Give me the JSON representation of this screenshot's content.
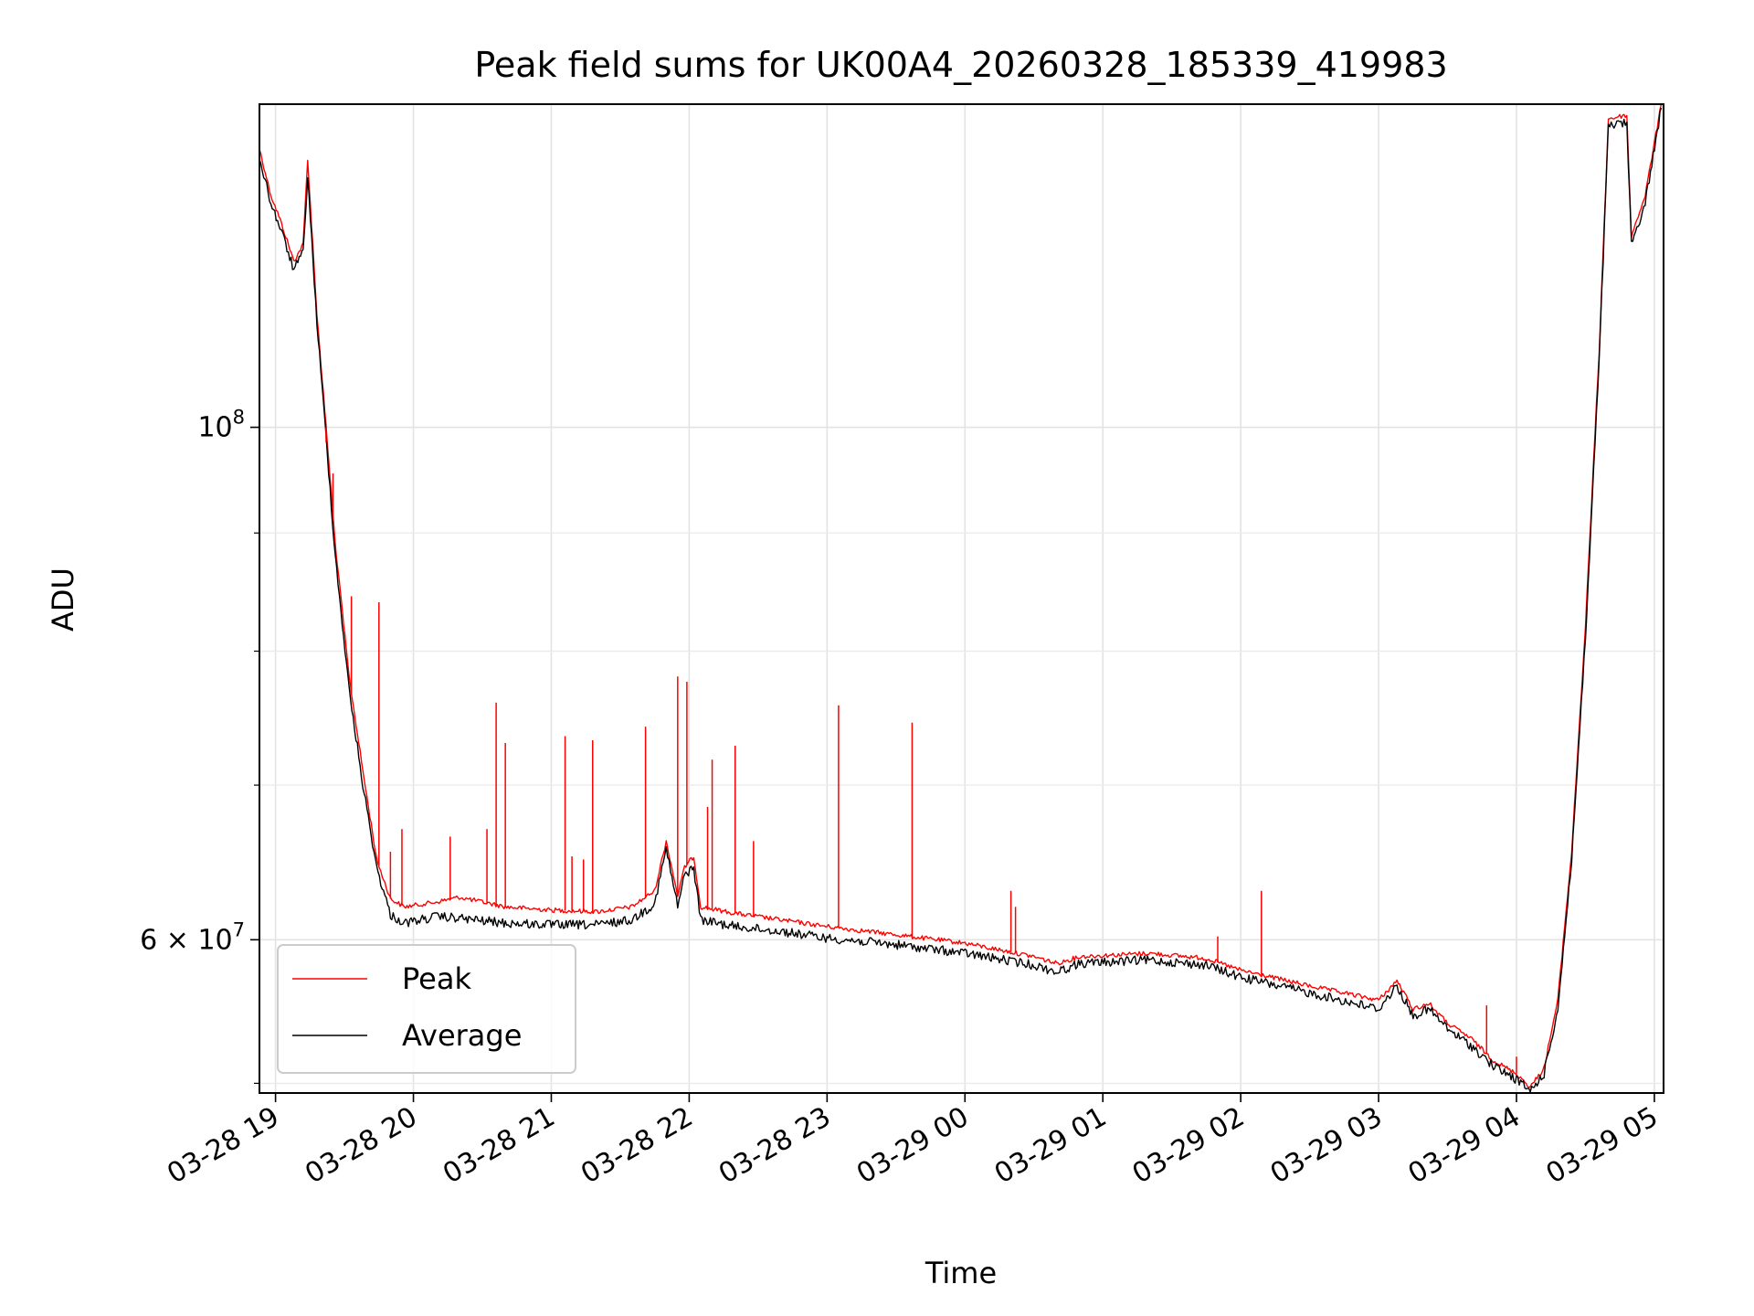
{
  "chart_data": {
    "type": "line",
    "title": "Peak field sums for UK00A4_20260328_185339_419983",
    "xlabel": "Time",
    "ylabel": "ADU",
    "yscale": "log",
    "grid": true,
    "legend_position": "lower-left",
    "xlim": [
      "2026-03-28 18:53",
      "2026-03-29 05:04"
    ],
    "ylim": [
      51500000,
      138000000
    ],
    "x_ticks": [
      "03-28 19",
      "03-28 20",
      "03-28 21",
      "03-28 22",
      "03-28 23",
      "03-29 00",
      "03-29 01",
      "03-29 02",
      "03-29 03",
      "03-29 04",
      "03-29 05"
    ],
    "y_ticks": [
      {
        "value": 100000000,
        "base": "10",
        "exp": "8",
        "mult": ""
      },
      {
        "value": 60000000,
        "base": "10",
        "exp": "7",
        "mult": "6 × "
      }
    ],
    "y_minor_ticks": [
      52000000,
      70000000,
      80000000,
      90000000
    ],
    "x_grid": [
      "2026-03-28 19:00",
      "2026-03-28 20:00",
      "2026-03-28 21:00",
      "2026-03-28 22:00",
      "2026-03-28 23:00",
      "2026-03-29 00:00",
      "2026-03-29 01:00",
      "2026-03-29 02:00",
      "2026-03-29 03:00",
      "2026-03-29 04:00",
      "2026-03-29 05:00"
    ],
    "series": [
      {
        "name": "Peak",
        "color": "#ff0000",
        "points": [
          [
            "2026-03-28 18:53",
            132000000
          ],
          [
            "2026-03-28 18:58",
            126000000
          ],
          [
            "2026-03-28 19:02",
            123000000
          ],
          [
            "2026-03-28 19:08",
            118000000
          ],
          [
            "2026-03-28 19:12",
            120000000
          ],
          [
            "2026-03-28 19:14",
            130500000
          ],
          [
            "2026-03-28 19:18",
            112000000
          ],
          [
            "2026-03-28 19:22",
            100000000
          ],
          [
            "2026-03-28 19:26",
            89000000
          ],
          [
            "2026-03-28 19:32",
            78000000
          ],
          [
            "2026-03-28 19:38",
            71000000
          ],
          [
            "2026-03-28 19:44",
            65000000
          ],
          [
            "2026-03-28 19:50",
            62500000
          ],
          [
            "2026-03-28 19:56",
            62000000
          ],
          [
            "2026-03-28 20:10",
            62300000
          ],
          [
            "2026-03-28 20:20",
            62600000
          ],
          [
            "2026-03-28 20:40",
            62000000
          ],
          [
            "2026-03-28 21:00",
            61800000
          ],
          [
            "2026-03-28 21:20",
            61700000
          ],
          [
            "2026-03-28 21:35",
            62000000
          ],
          [
            "2026-03-28 21:45",
            63000000
          ],
          [
            "2026-03-28 21:50",
            66200000
          ],
          [
            "2026-03-28 21:55",
            62700000
          ],
          [
            "2026-03-28 21:58",
            64500000
          ],
          [
            "2026-03-28 22:02",
            65200000
          ],
          [
            "2026-03-28 22:05",
            62000000
          ],
          [
            "2026-03-28 22:20",
            61600000
          ],
          [
            "2026-03-28 22:40",
            61200000
          ],
          [
            "2026-03-28 23:00",
            60800000
          ],
          [
            "2026-03-28 23:30",
            60300000
          ],
          [
            "2026-03-29 00:00",
            59800000
          ],
          [
            "2026-03-29 00:30",
            59000000
          ],
          [
            "2026-03-29 00:40",
            58600000
          ],
          [
            "2026-03-29 00:50",
            59000000
          ],
          [
            "2026-03-29 01:20",
            59200000
          ],
          [
            "2026-03-29 01:45",
            58900000
          ],
          [
            "2026-03-29 02:00",
            58200000
          ],
          [
            "2026-03-29 02:30",
            57300000
          ],
          [
            "2026-03-29 03:00",
            56500000
          ],
          [
            "2026-03-29 03:08",
            57600000
          ],
          [
            "2026-03-29 03:15",
            56000000
          ],
          [
            "2026-03-29 03:22",
            56300000
          ],
          [
            "2026-03-29 03:30",
            55200000
          ],
          [
            "2026-03-29 03:40",
            54400000
          ],
          [
            "2026-03-29 03:50",
            53200000
          ],
          [
            "2026-03-29 04:00",
            52500000
          ],
          [
            "2026-03-29 04:06",
            51800000
          ],
          [
            "2026-03-29 04:12",
            52800000
          ],
          [
            "2026-03-29 04:18",
            56500000
          ],
          [
            "2026-03-29 04:24",
            65500000
          ],
          [
            "2026-03-29 04:30",
            82000000
          ],
          [
            "2026-03-29 04:36",
            108000000
          ],
          [
            "2026-03-29 04:40",
            136000000
          ],
          [
            "2026-03-29 04:48",
            136500000
          ],
          [
            "2026-03-29 04:50",
            121000000
          ],
          [
            "2026-03-29 04:56",
            126000000
          ],
          [
            "2026-03-29 05:03",
            138000000
          ]
        ]
      },
      {
        "name": "Average",
        "color": "#000000",
        "points": [
          [
            "2026-03-28 18:53",
            131000000
          ],
          [
            "2026-03-28 18:58",
            125000000
          ],
          [
            "2026-03-28 19:02",
            122000000
          ],
          [
            "2026-03-28 19:08",
            117000000
          ],
          [
            "2026-03-28 19:12",
            119000000
          ],
          [
            "2026-03-28 19:14",
            128500000
          ],
          [
            "2026-03-28 19:18",
            111000000
          ],
          [
            "2026-03-28 19:22",
            99000000
          ],
          [
            "2026-03-28 19:26",
            88000000
          ],
          [
            "2026-03-28 19:32",
            77000000
          ],
          [
            "2026-03-28 19:38",
            70000000
          ],
          [
            "2026-03-28 19:44",
            64500000
          ],
          [
            "2026-03-28 19:50",
            61500000
          ],
          [
            "2026-03-28 19:56",
            61000000
          ],
          [
            "2026-03-28 20:10",
            61400000
          ],
          [
            "2026-03-28 20:20",
            61300000
          ],
          [
            "2026-03-28 20:40",
            61000000
          ],
          [
            "2026-03-28 21:00",
            60900000
          ],
          [
            "2026-03-28 21:20",
            60900000
          ],
          [
            "2026-03-28 21:35",
            61200000
          ],
          [
            "2026-03-28 21:45",
            62200000
          ],
          [
            "2026-03-28 21:50",
            65700000
          ],
          [
            "2026-03-28 21:55",
            62000000
          ],
          [
            "2026-03-28 21:58",
            64000000
          ],
          [
            "2026-03-28 22:02",
            64500000
          ],
          [
            "2026-03-28 22:05",
            61200000
          ],
          [
            "2026-03-28 22:20",
            60800000
          ],
          [
            "2026-03-28 22:40",
            60500000
          ],
          [
            "2026-03-28 23:00",
            60100000
          ],
          [
            "2026-03-28 23:30",
            59700000
          ],
          [
            "2026-03-29 00:00",
            59200000
          ],
          [
            "2026-03-29 00:30",
            58500000
          ],
          [
            "2026-03-29 00:40",
            58100000
          ],
          [
            "2026-03-29 00:50",
            58600000
          ],
          [
            "2026-03-29 01:20",
            58800000
          ],
          [
            "2026-03-29 01:45",
            58500000
          ],
          [
            "2026-03-29 02:00",
            57800000
          ],
          [
            "2026-03-29 02:30",
            56900000
          ],
          [
            "2026-03-29 03:00",
            56000000
          ],
          [
            "2026-03-29 03:08",
            57300000
          ],
          [
            "2026-03-29 03:15",
            55600000
          ],
          [
            "2026-03-29 03:22",
            56000000
          ],
          [
            "2026-03-29 03:30",
            54900000
          ],
          [
            "2026-03-29 03:40",
            54000000
          ],
          [
            "2026-03-29 03:50",
            52900000
          ],
          [
            "2026-03-29 04:00",
            52200000
          ],
          [
            "2026-03-29 04:06",
            51600000
          ],
          [
            "2026-03-29 04:12",
            52500000
          ],
          [
            "2026-03-29 04:18",
            56000000
          ],
          [
            "2026-03-29 04:24",
            65000000
          ],
          [
            "2026-03-29 04:30",
            81000000
          ],
          [
            "2026-03-29 04:36",
            107000000
          ],
          [
            "2026-03-29 04:40",
            135000000
          ],
          [
            "2026-03-29 04:48",
            135500000
          ],
          [
            "2026-03-29 04:50",
            120000000
          ],
          [
            "2026-03-29 04:56",
            125000000
          ],
          [
            "2026-03-29 05:03",
            137500000
          ]
        ]
      }
    ],
    "peak_spikes": [
      [
        "2026-03-28 19:22",
        98500000
      ],
      [
        "2026-03-28 19:25",
        95500000
      ],
      [
        "2026-03-28 19:33",
        84500000
      ],
      [
        "2026-03-28 19:45",
        84000000
      ],
      [
        "2026-03-28 19:50",
        65500000
      ],
      [
        "2026-03-28 19:55",
        67000000
      ],
      [
        "2026-03-28 20:16",
        66500000
      ],
      [
        "2026-03-28 20:32",
        67000000
      ],
      [
        "2026-03-28 20:36",
        76000000
      ],
      [
        "2026-03-28 20:40",
        73000000
      ],
      [
        "2026-03-28 21:06",
        73500000
      ],
      [
        "2026-03-28 21:09",
        65200000
      ],
      [
        "2026-03-28 21:14",
        65000000
      ],
      [
        "2026-03-28 21:18",
        73200000
      ],
      [
        "2026-03-28 21:41",
        74200000
      ],
      [
        "2026-03-28 21:55",
        78000000
      ],
      [
        "2026-03-28 21:59",
        77600000
      ],
      [
        "2026-03-28 22:08",
        68500000
      ],
      [
        "2026-03-28 22:10",
        71800000
      ],
      [
        "2026-03-28 22:20",
        72800000
      ],
      [
        "2026-03-28 22:28",
        66200000
      ],
      [
        "2026-03-28 23:05",
        75800000
      ],
      [
        "2026-03-28 23:37",
        74500000
      ],
      [
        "2026-03-29 00:20",
        63000000
      ],
      [
        "2026-03-29 00:22",
        62000000
      ],
      [
        "2026-03-29 01:50",
        60200000
      ],
      [
        "2026-03-29 02:09",
        63000000
      ],
      [
        "2026-03-29 03:47",
        56200000
      ],
      [
        "2026-03-29 04:00",
        53400000
      ]
    ]
  },
  "legend": {
    "items": [
      {
        "name": "Peak",
        "color": "#ff0000"
      },
      {
        "name": "Average",
        "color": "#000000"
      }
    ]
  }
}
